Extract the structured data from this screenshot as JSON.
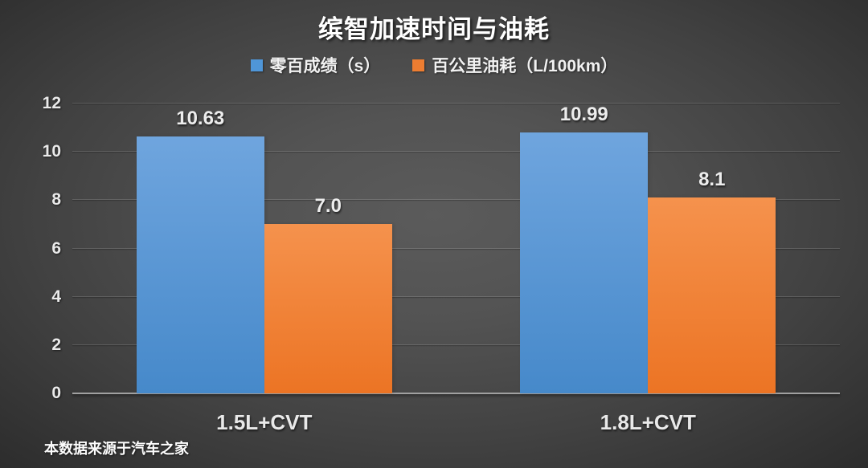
{
  "title": "缤智加速时间与油耗",
  "footer": "本数据来源于汽车之家",
  "chart_data": {
    "type": "bar",
    "title": "缤智加速时间与油耗",
    "categories": [
      "1.5L+CVT",
      "1.8L+CVT"
    ],
    "series": [
      {
        "id": "acceleration-time",
        "name": "零百成绩（s）",
        "color": "#4f96d8",
        "color_top": "#6fa5de",
        "color_bottom": "#4689ca",
        "values": [
          10.63,
          10.99
        ],
        "labels": [
          "10.63",
          "10.99"
        ]
      },
      {
        "id": "fuel-consumption",
        "name": "百公里油耗（L/100km）",
        "color": "#ed7d31",
        "color_top": "#f5924d",
        "color_bottom": "#ec7424",
        "values": [
          7.0,
          8.1
        ],
        "labels": [
          "7.0",
          "8.1"
        ]
      }
    ],
    "ylim": [
      0,
      12
    ],
    "yticks": [
      0,
      2,
      4,
      6,
      8,
      10,
      12
    ],
    "grid": true,
    "legend_position": "top",
    "xlabel": "",
    "ylabel": "",
    "source_note": "本数据来源于汽车之家"
  }
}
